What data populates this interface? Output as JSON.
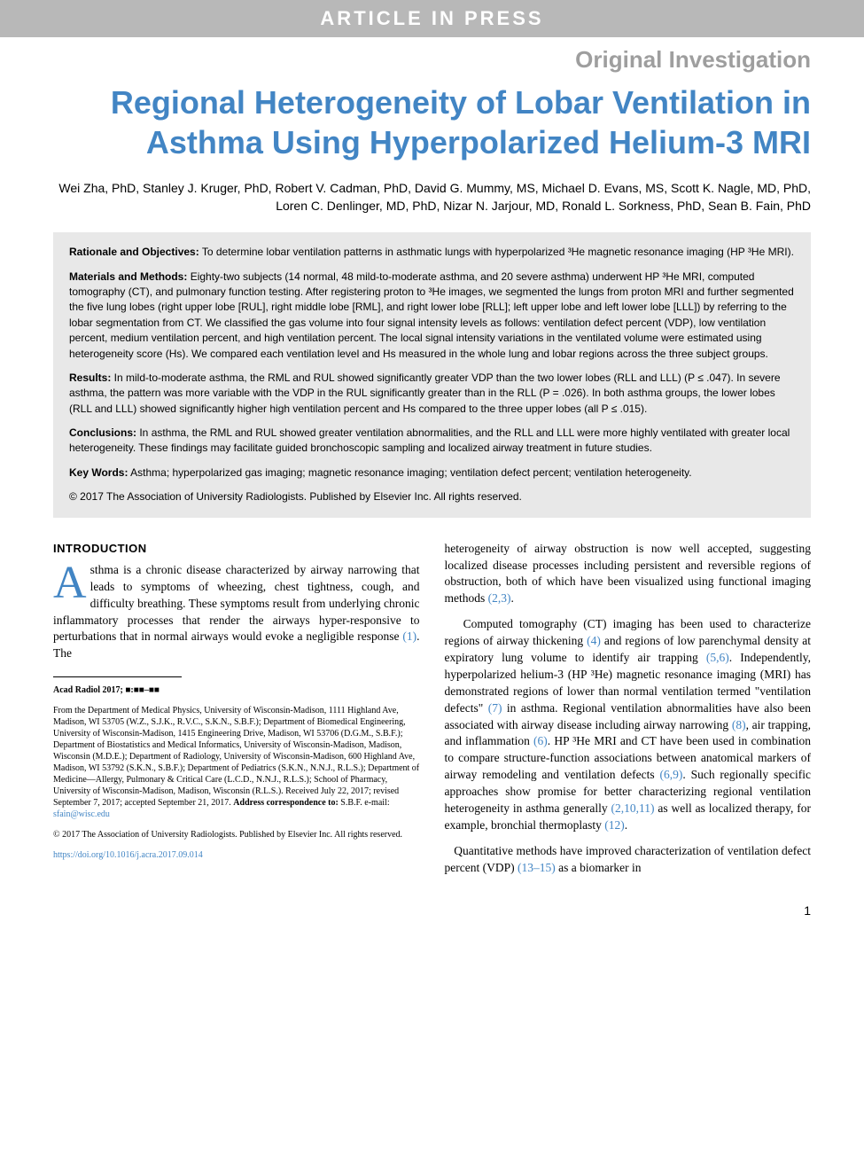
{
  "banner": "ARTICLE IN PRESS",
  "sectionLabel": "Original Investigation",
  "title": "Regional Heterogeneity of Lobar Ventilation in Asthma Using Hyperpolarized Helium-3 MRI",
  "authors": "Wei Zha, PhD, Stanley J. Kruger, PhD, Robert V. Cadman, PhD, David G. Mummy, MS, Michael D. Evans, MS, Scott K. Nagle, MD, PhD, Loren C. Denlinger, MD, PhD, Nizar N. Jarjour, MD, Ronald L. Sorkness, PhD, Sean B. Fain, PhD",
  "abstract": {
    "rationale": {
      "label": "Rationale and Objectives:",
      "text": " To determine lobar ventilation patterns in asthmatic lungs with hyperpolarized ³He magnetic resonance imaging (HP ³He MRI)."
    },
    "methods": {
      "label": "Materials and Methods:",
      "text": " Eighty-two subjects (14 normal, 48 mild-to-moderate asthma, and 20 severe asthma) underwent HP ³He MRI, computed tomography (CT), and pulmonary function testing. After registering proton to ³He images, we segmented the lungs from proton MRI and further segmented the five lung lobes (right upper lobe [RUL], right middle lobe [RML], and right lower lobe [RLL]; left upper lobe and left lower lobe [LLL]) by referring to the lobar segmentation from CT. We classified the gas volume into four signal intensity levels as follows: ventilation defect percent (VDP), low ventilation percent, medium ventilation percent, and high ventilation percent. The local signal intensity variations in the ventilated volume were estimated using heterogeneity score (Hs). We compared each ventilation level and Hs measured in the whole lung and lobar regions across the three subject groups."
    },
    "results": {
      "label": "Results:",
      "text": " In mild-to-moderate asthma, the RML and RUL showed significantly greater VDP than the two lower lobes (RLL and LLL) (P ≤ .047). In severe asthma, the pattern was more variable with the VDP in the RUL significantly greater than in the RLL (P = .026). In both asthma groups, the lower lobes (RLL and LLL) showed significantly higher high ventilation percent and Hs compared to the three upper lobes (all P ≤ .015)."
    },
    "conclusions": {
      "label": "Conclusions:",
      "text": " In asthma, the RML and RUL showed greater ventilation abnormalities, and the RLL and LLL were more highly ventilated with greater local heterogeneity. These findings may facilitate guided bronchoscopic sampling and localized airway treatment in future studies."
    },
    "keywords": {
      "label": "Key Words:",
      "text": " Asthma; hyperpolarized gas imaging; magnetic resonance imaging; ventilation defect percent; ventilation heterogeneity."
    },
    "copyright": "© 2017 The Association of University Radiologists. Published by Elsevier Inc. All rights reserved."
  },
  "intro": {
    "heading": "INTRODUCTION",
    "dropcap": "A",
    "p1_rest": "sthma is a chronic disease characterized by airway narrowing that leads to symptoms of wheezing, chest tightness, cough, and difficulty breathing. These symptoms result from underlying chronic inflammatory processes that render the airways hyper-responsive to perturbations that in normal airways would evoke a negligible response ",
    "c1": "(1)",
    "p1_end": ". The",
    "p2a": "heterogeneity of airway obstruction is now well accepted, suggesting localized disease processes including persistent and reversible regions of obstruction, both of which have been visualized using functional imaging methods ",
    "c23": "(2,3)",
    "p2b": ".",
    "p3a": "Computed tomography (CT) imaging has been used to characterize regions of airway thickening ",
    "c4": "(4)",
    "p3b": " and regions of low parenchymal density at expiratory lung volume to identify air trapping ",
    "c56": "(5,6)",
    "p3c": ". Independently, hyperpolarized helium-3 (HP ³He) magnetic resonance imaging (MRI) has demonstrated regions of lower than normal ventilation termed \"ventilation defects\" ",
    "c7": "(7)",
    "p3d": " in asthma. Regional ventilation abnormalities have also been associated with airway disease including airway narrowing ",
    "c8": "(8)",
    "p3e": ", air trapping, and inflammation ",
    "c6": "(6)",
    "p3f": ". HP ³He MRI and CT have been used in combination to compare structure-function associations between anatomical markers of airway remodeling and ventilation defects ",
    "c69": "(6,9)",
    "p3g": ". Such regionally specific approaches show promise for better characterizing regional ventilation heterogeneity in asthma generally ",
    "c21011": "(2,10,11)",
    "p3h": " as well as localized therapy, for example, bronchial thermoplasty ",
    "c12": "(12)",
    "p3i": ".",
    "p4a": "Quantitative methods have improved characterization of ventilation defect percent (VDP) ",
    "c1315": "(13–15)",
    "p4b": " as a biomarker in"
  },
  "footnote": {
    "ref": "Acad Radiol 2017; ■:■■–■■",
    "affil": "From the Department of Medical Physics, University of Wisconsin-Madison, 1111 Highland Ave, Madison, WI 53705 (W.Z., S.J.K., R.V.C., S.K.N., S.B.F.); Department of Biomedical Engineering, University of Wisconsin-Madison, 1415 Engineering Drive, Madison, WI 53706 (D.G.M., S.B.F.); Department of Biostatistics and Medical Informatics, University of Wisconsin-Madison, Madison, Wisconsin (M.D.E.); Department of Radiology, University of Wisconsin-Madison, 600 Highland Ave, Madison, WI 53792 (S.K.N., S.B.F.); Department of Pediatrics (S.K.N., N.N.J., R.L.S.); Department of Medicine—Allergy, Pulmonary & Critical Care (L.C.D., N.N.J., R.L.S.); School of Pharmacy, University of Wisconsin-Madison, Madison, Wisconsin (R.L.S.). Received July 22, 2017; revised September 7, 2017; accepted September 21, 2017. ",
    "corrLabel": "Address correspondence to:",
    "corrText": " S.B.F. e-mail: ",
    "email": "sfain@wisc.edu",
    "copy": "© 2017 The Association of University Radiologists. Published by Elsevier Inc. All rights reserved.",
    "doi": "https://doi.org/10.1016/j.acra.2017.09.014"
  },
  "pageNumber": "1",
  "colors": {
    "accent": "#4285c4",
    "bannerBg": "#b8b8b8",
    "sectionGray": "#9e9e9e",
    "abstractBg": "#e8e8e8"
  }
}
